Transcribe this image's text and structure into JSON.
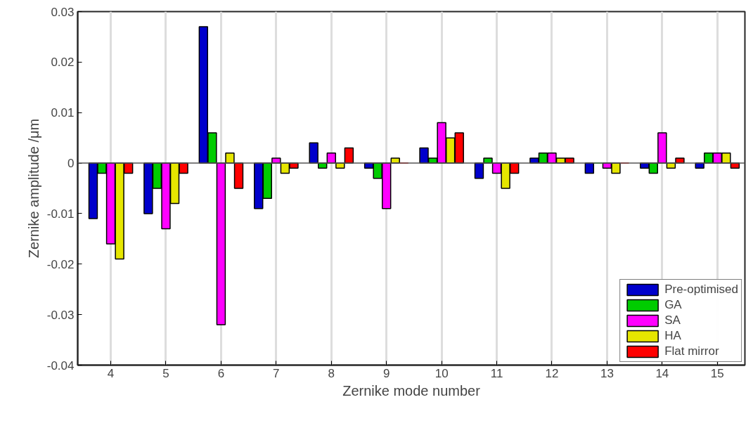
{
  "chart_data": {
    "type": "bar",
    "xlabel": "Zernike mode number",
    "ylabel": "Zernike amplitude /μm",
    "categories": [
      "4",
      "5",
      "6",
      "7",
      "8",
      "9",
      "10",
      "11",
      "12",
      "13",
      "14",
      "15"
    ],
    "series": [
      {
        "name": "Pre-optimised",
        "color": "#0000cc",
        "values": [
          -0.011,
          -0.01,
          0.027,
          -0.009,
          0.004,
          -0.001,
          0.003,
          -0.003,
          0.001,
          -0.002,
          -0.001,
          -0.001
        ]
      },
      {
        "name": "GA",
        "color": "#00cc00",
        "values": [
          -0.002,
          -0.005,
          0.006,
          -0.007,
          -0.001,
          -0.003,
          0.001,
          0.001,
          0.002,
          0,
          -0.002,
          0.002
        ]
      },
      {
        "name": "SA",
        "color": "#ff00ff",
        "values": [
          -0.016,
          -0.013,
          -0.032,
          0.001,
          0.002,
          -0.009,
          0.008,
          -0.002,
          0.002,
          -0.001,
          0.006,
          0.002
        ]
      },
      {
        "name": "HA",
        "color": "#e6e600",
        "values": [
          -0.019,
          -0.008,
          0.002,
          -0.002,
          -0.001,
          0.001,
          0.005,
          -0.005,
          0.001,
          -0.002,
          -0.001,
          0.002
        ]
      },
      {
        "name": "Flat mirror",
        "color": "#ff0000",
        "values": [
          -0.002,
          -0.002,
          -0.005,
          -0.001,
          0.003,
          0,
          0.006,
          -0.002,
          0.001,
          0,
          0.001,
          -0.001
        ]
      }
    ],
    "ylim": [
      -0.04,
      0.03
    ],
    "yticks": [
      -0.04,
      -0.03,
      -0.02,
      -0.01,
      0,
      0.01,
      0.02,
      0.03
    ],
    "grid": "x",
    "legend": "bottom right"
  }
}
